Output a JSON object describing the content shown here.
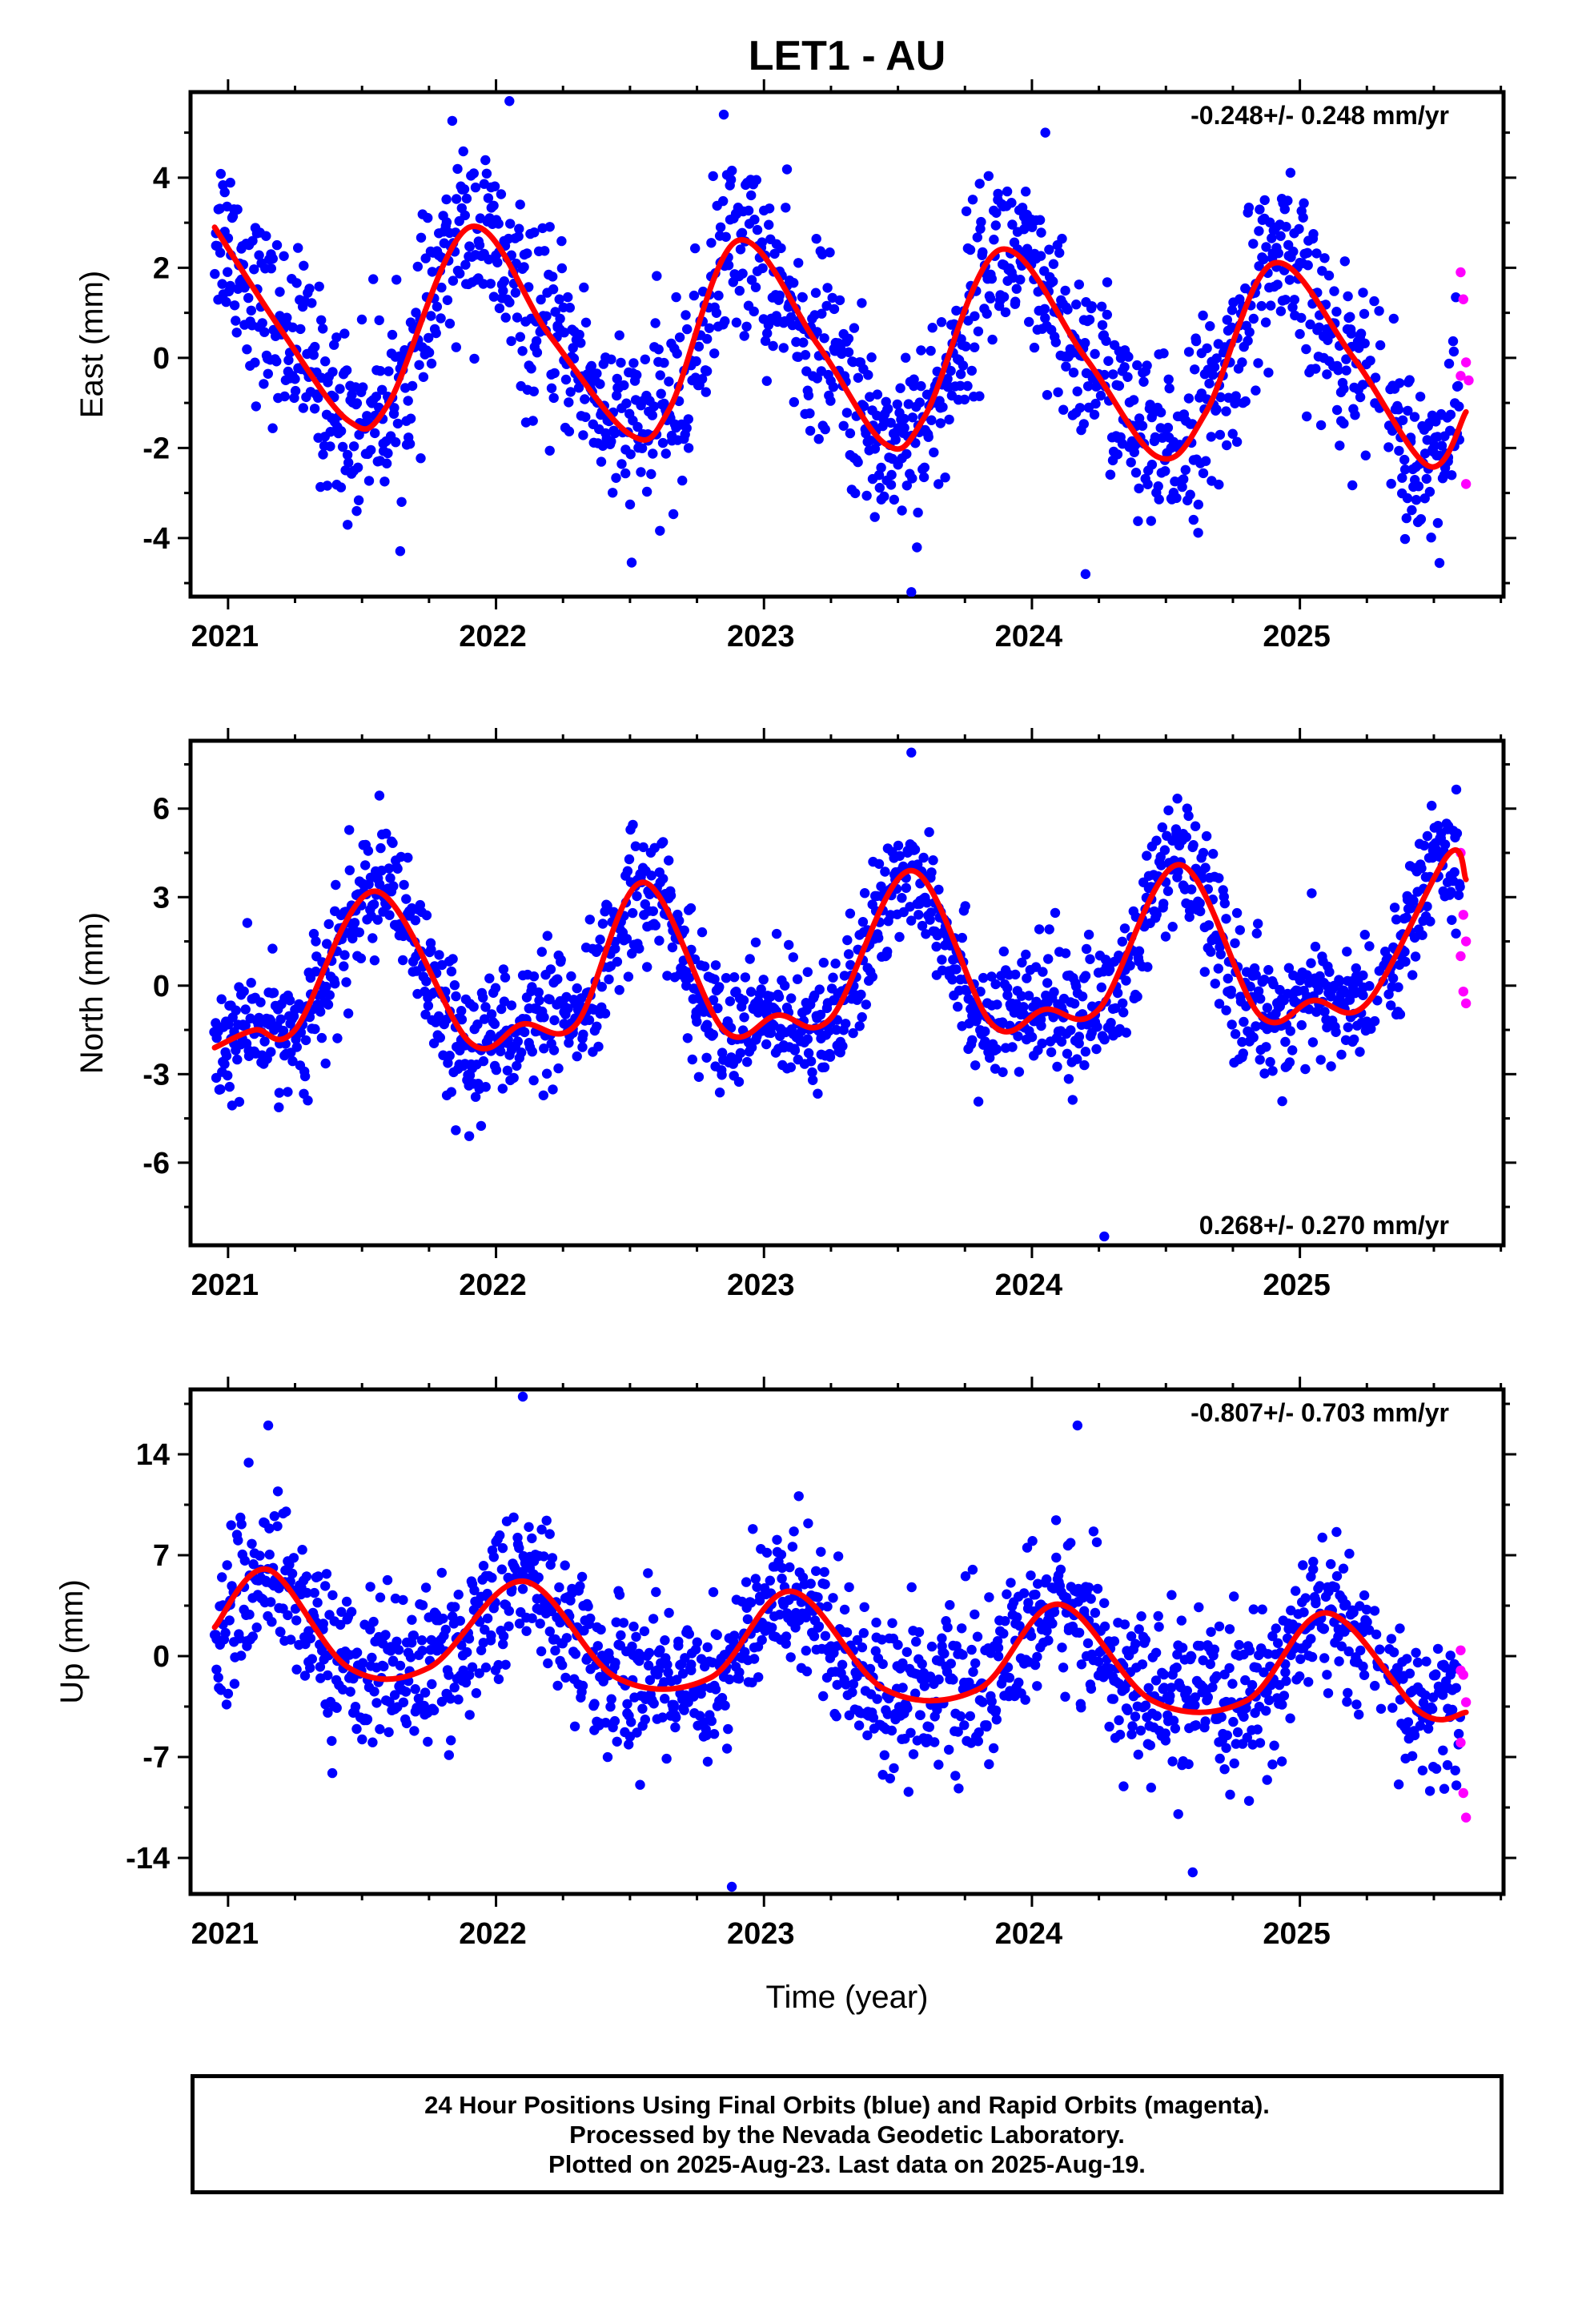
{
  "title": "LET1 - AU",
  "colors": {
    "final": "#0000ff",
    "rapid": "#ff00ff",
    "fit": "#ff0000"
  },
  "chart_data": [
    {
      "type": "scatter",
      "title": "",
      "ylabel": "East (mm)",
      "xlabel": "",
      "rate": "-0.248+/- 0.248 mm/yr",
      "rate_position": "top-right",
      "xlim": [
        2020.86,
        2025.76
      ],
      "ylim": [
        -5.3,
        5.9
      ],
      "x_ticks": [
        "2021",
        "2022",
        "2023",
        "2024",
        "2025"
      ],
      "y_ticks": [
        "-4",
        "-2",
        "0",
        "2",
        "4"
      ],
      "y_tick_values": [
        -4,
        -2,
        0,
        2,
        4
      ],
      "fit": {
        "x": [
          2020.95,
          2021.2,
          2021.45,
          2021.6,
          2021.9,
          2022.2,
          2022.5,
          2022.65,
          2022.9,
          2023.2,
          2023.45,
          2023.6,
          2023.88,
          2024.2,
          2024.47,
          2024.65,
          2024.9,
          2025.2,
          2025.48,
          2025.62
        ],
        "y": [
          2.9,
          0.6,
          -1.4,
          -1.0,
          2.9,
          0.5,
          -1.7,
          -1.1,
          2.6,
          0.3,
          -1.9,
          -1.3,
          2.4,
          0.0,
          -2.2,
          -1.2,
          2.1,
          0.0,
          -2.4,
          -1.2
        ]
      },
      "rapid": {
        "x": [
          2025.6,
          2025.61,
          2025.62,
          2025.63,
          2025.6,
          2025.62
        ],
        "y": [
          1.9,
          1.3,
          -0.1,
          -0.5,
          -0.4,
          -2.8
        ]
      },
      "final_scatter": 1.0,
      "final_outliers": {
        "x": [
          2021.48,
          2022.05,
          2022.85,
          2023.55,
          2024.05,
          2024.2
        ],
        "y": [
          -3.4,
          5.7,
          5.4,
          -5.2,
          5.0,
          -4.8
        ]
      }
    },
    {
      "type": "scatter",
      "title": "",
      "ylabel": "North (mm)",
      "xlabel": "",
      "rate": "0.268+/- 0.270 mm/yr",
      "rate_position": "bottom-right",
      "xlim": [
        2020.86,
        2025.76
      ],
      "ylim": [
        -8.8,
        8.3
      ],
      "x_ticks": [
        "2021",
        "2022",
        "2023",
        "2024",
        "2025"
      ],
      "y_ticks": [
        "-6",
        "-3",
        "0",
        "3",
        "6"
      ],
      "y_tick_values": [
        -6,
        -3,
        0,
        3,
        6
      ],
      "fit": {
        "x": [
          2020.95,
          2021.1,
          2021.25,
          2021.55,
          2021.9,
          2022.1,
          2022.3,
          2022.55,
          2022.85,
          2023.05,
          2023.25,
          2023.55,
          2023.85,
          2024.05,
          2024.25,
          2024.55,
          2024.85,
          2025.05,
          2025.25,
          2025.55,
          2025.62
        ],
        "y": [
          -2.1,
          -1.5,
          -1.5,
          3.2,
          -1.9,
          -1.3,
          -1.3,
          3.5,
          -1.5,
          -1.0,
          -1.1,
          3.9,
          -1.3,
          -0.8,
          -0.8,
          4.1,
          -1.0,
          -0.5,
          -0.6,
          4.4,
          3.6
        ]
      },
      "rapid": {
        "x": [
          2025.6,
          2025.61,
          2025.62,
          2025.6,
          2025.61,
          2025.62
        ],
        "y": [
          4.5,
          2.4,
          1.5,
          1.0,
          -0.2,
          -0.6
        ]
      },
      "final_scatter": 1.1,
      "final_outliers": {
        "x": [
          2024.27,
          2023.55,
          2021.9,
          2021.85
        ],
        "y": [
          -8.5,
          7.9,
          -5.1,
          -4.9
        ]
      }
    },
    {
      "type": "scatter",
      "title": "",
      "ylabel": "Up (mm)",
      "xlabel": "Time (year)",
      "rate": "-0.807+/- 0.703 mm/yr",
      "rate_position": "top-right",
      "xlim": [
        2020.86,
        2025.76
      ],
      "ylim": [
        -16.5,
        18.5
      ],
      "x_ticks": [
        "2021",
        "2022",
        "2023",
        "2024",
        "2025"
      ],
      "y_ticks": [
        "-14",
        "-7",
        "0",
        "7",
        "14"
      ],
      "y_tick_values": [
        -14,
        -7,
        0,
        7,
        14
      ],
      "fit": {
        "x": [
          2020.95,
          2021.15,
          2021.45,
          2021.75,
          2022.1,
          2022.45,
          2022.8,
          2023.1,
          2023.45,
          2023.8,
          2024.1,
          2024.45,
          2024.8,
          2025.1,
          2025.45,
          2025.62
        ],
        "y": [
          2.0,
          6.0,
          -0.8,
          -0.8,
          5.2,
          -1.5,
          -1.5,
          4.5,
          -2.3,
          -2.3,
          3.6,
          -3.1,
          -3.1,
          3.0,
          -3.9,
          -3.9
        ]
      },
      "rapid": {
        "x": [
          2025.6,
          2025.61,
          2025.62,
          2025.6,
          2025.61,
          2025.62,
          2025.6
        ],
        "y": [
          0.4,
          -1.3,
          -3.2,
          -6.0,
          -9.5,
          -11.2,
          -1.0
        ]
      },
      "final_scatter": 2.6,
      "final_outliers": {
        "x": [
          2022.1,
          2022.88,
          2024.17,
          2024.6,
          2021.15
        ],
        "y": [
          18.0,
          -16.0,
          16.0,
          -15.0,
          16.0
        ]
      }
    }
  ],
  "footer": {
    "line1": "24 Hour Positions Using Final Orbits (blue) and Rapid Orbits (magenta).",
    "line2": "Processed by the Nevada Geodetic Laboratory.",
    "line3": "Plotted on 2025-Aug-23. Last data on 2025-Aug-19."
  }
}
